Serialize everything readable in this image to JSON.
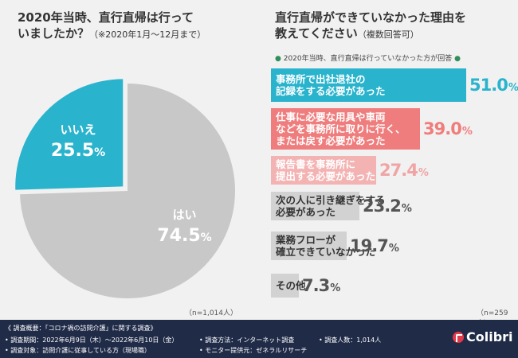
{
  "chart_data": [
    {
      "type": "pie",
      "title_line1": "2020年当時、直行直帰は行って",
      "title_line2": "いましたか？",
      "subtitle": "（※2020年1月〜12月まで）",
      "slices": [
        {
          "label": "はい",
          "value": 74.5,
          "color": "#c8c8c8",
          "text_color": "#ffffff"
        },
        {
          "label": "いいえ",
          "value": 25.5,
          "color": "#29b3cc",
          "text_color": "#ffffff"
        }
      ],
      "n_label": "（n=1,014人）"
    },
    {
      "type": "bar",
      "title_line1": "直行直帰ができていなかった理由を",
      "title_line2": "教えてください",
      "subtitle": "（複数回答可）",
      "note": "2020年当時、直行直帰は行っていなかった方が回答",
      "categories": [
        "事務所で出社退社の\n記録をする必要があった",
        "仕事に必要な用具や車両\nなどを事務所に取りに行く、\nまたは戻す必要があった",
        "報告書を事務所に\n提出する必要があった",
        "次の人に引き継ぎをする\n必要があった",
        "業務フローが\n確立できていなかった",
        "その他"
      ],
      "values": [
        51.0,
        39.0,
        27.4,
        23.2,
        19.7,
        7.3
      ],
      "value_labels": [
        "51.0",
        "39.0",
        "27.4",
        "23.2",
        "19.7",
        "7.3"
      ],
      "unit": "%",
      "colors": [
        "#29b3cc",
        "#ef7d7d",
        "#f4b3b3",
        "#d2d2d2",
        "#d2d2d2",
        "#d2d2d2"
      ],
      "label_colors": [
        "#ffffff",
        "#ffffff",
        "#ffffff",
        "#333333",
        "#333333",
        "#333333"
      ],
      "value_colors": [
        "#29b3cc",
        "#ef7d7d",
        "#f0a4a4",
        "#555555",
        "#555555",
        "#555555"
      ],
      "xlim": [
        0,
        51
      ],
      "n_label": "（n=259人）"
    }
  ],
  "footer": {
    "summary": "《 調査概要：「コロナ禍の訪問介護」に関する調査》",
    "period": "• 調査期間：2022年6月9日（木）〜2022年6月10日（金）",
    "target": "• 調査対象：訪問介護に従事している方（現場職）",
    "method": "• 調査方法：インターネット調査",
    "provider": "• モニター提供元：ゼネラルリサーチ",
    "count": "• 調査人数：1,014人"
  },
  "logo": {
    "text": "Colibri",
    "color": "#e23a4a"
  }
}
